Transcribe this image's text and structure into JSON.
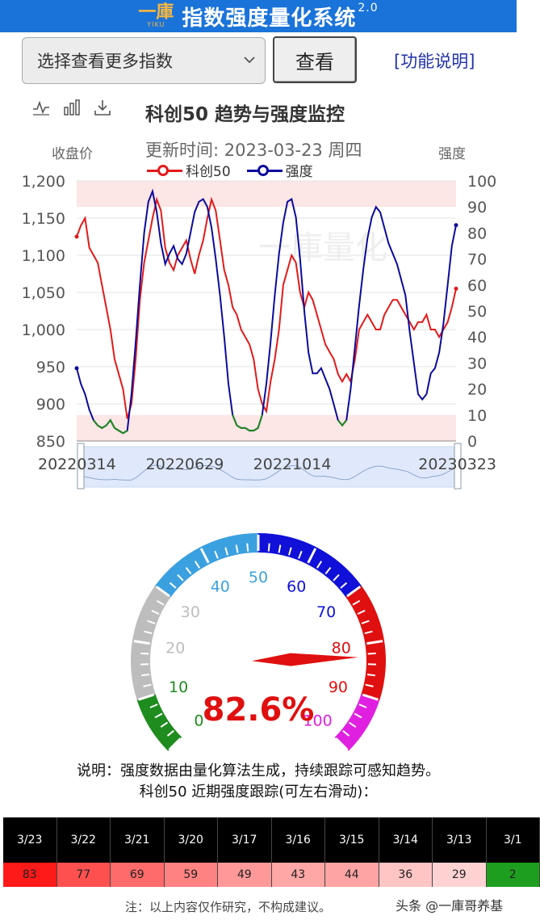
{
  "header": {
    "logo_mark": "一庫",
    "logo_sub": "YIKU",
    "title": "指数强度量化系统",
    "version": "2.0"
  },
  "controls": {
    "select_value": "选择查看更多指数",
    "view_button": "查看",
    "help_link": "[功能说明]"
  },
  "toolbox": [
    "line-chart-icon",
    "bar-chart-icon",
    "download-icon"
  ],
  "chart": {
    "title": "科创50 趋势与强度监控",
    "update_time": "更新时间: 2023-03-23 周四",
    "ylabel_left": "收盘价",
    "ylabel_right": "强度",
    "watermark": "一庫量化",
    "legend": [
      {
        "name": "科创50",
        "color": "#e31a1a"
      },
      {
        "name": "强度",
        "color": "#0b0b9c"
      }
    ]
  },
  "chart_data": {
    "type": "line",
    "title": "科创50 趋势与强度监控",
    "xlabel": "",
    "ylabel_left": "收盘价",
    "ylabel_right": "强度",
    "ylim_left": [
      850,
      1200
    ],
    "yticks_left": [
      "850",
      "900",
      "950",
      "1,000",
      "1,050",
      "1,100",
      "1,150",
      "1,200"
    ],
    "ylim_right": [
      0,
      100
    ],
    "yticks_right": [
      "0",
      "10",
      "20",
      "30",
      "40",
      "50",
      "60",
      "70",
      "80",
      "90",
      "100"
    ],
    "x_tick_labels": [
      "20220314",
      "20220629",
      "20221014",
      "20230323"
    ],
    "bands_right_axis": [
      [
        90,
        100
      ],
      [
        0,
        10
      ]
    ],
    "series": [
      {
        "name": "科创50",
        "axis": "left",
        "color": "#e31a1a",
        "values": [
          1125,
          1140,
          1150,
          1110,
          1100,
          1090,
          1060,
          1030,
          1000,
          960,
          940,
          920,
          880,
          900,
          960,
          1040,
          1090,
          1120,
          1150,
          1175,
          1160,
          1110,
          1090,
          1080,
          1100,
          1110,
          1120,
          1095,
          1075,
          1100,
          1120,
          1150,
          1175,
          1160,
          1120,
          1080,
          1060,
          1030,
          1020,
          1000,
          990,
          980,
          960,
          920,
          900,
          890,
          930,
          960,
          1000,
          1060,
          1080,
          1100,
          1090,
          1050,
          1030,
          1050,
          1040,
          1020,
          1000,
          980,
          970,
          960,
          940,
          930,
          940,
          930,
          960,
          1000,
          1010,
          1020,
          1010,
          1000,
          1000,
          1020,
          1030,
          1040,
          1040,
          1030,
          1020,
          1010,
          1000,
          1010,
          1010,
          1020,
          1000,
          1000,
          990,
          1000,
          1010,
          1030,
          1055
        ]
      },
      {
        "name": "强度",
        "axis": "right",
        "color": "#0b0b9c",
        "values": [
          28,
          22,
          18,
          12,
          8,
          6,
          5,
          6,
          8,
          5,
          4,
          3,
          4,
          18,
          38,
          60,
          80,
          92,
          96,
          88,
          76,
          68,
          72,
          75,
          70,
          68,
          72,
          80,
          88,
          92,
          93,
          90,
          82,
          70,
          56,
          40,
          22,
          10,
          6,
          5,
          5,
          4,
          4,
          5,
          10,
          22,
          38,
          56,
          72,
          84,
          92,
          93,
          86,
          70,
          50,
          34,
          26,
          26,
          28,
          24,
          20,
          14,
          8,
          6,
          8,
          20,
          36,
          52,
          66,
          78,
          86,
          90,
          88,
          82,
          76,
          72,
          68,
          62,
          56,
          42,
          30,
          18,
          16,
          18,
          26,
          28,
          34,
          45,
          60,
          75,
          83
        ]
      }
    ]
  },
  "zoom": {
    "start_label": "20220314",
    "end_label": "20230323"
  },
  "gauge": {
    "value": 82.6,
    "value_label": "82.6%",
    "min": 0,
    "max": 100,
    "tick_labels": [
      "0",
      "10",
      "20",
      "30",
      "40",
      "50",
      "60",
      "70",
      "80",
      "90",
      "100"
    ],
    "segments": [
      {
        "from": 0,
        "to": 10,
        "color": "#1e8c1e"
      },
      {
        "from": 10,
        "to": 30,
        "color": "#bdbdbd"
      },
      {
        "from": 30,
        "to": 50,
        "color": "#3ba0e0"
      },
      {
        "from": 50,
        "to": 70,
        "color": "#1010d8"
      },
      {
        "from": 70,
        "to": 90,
        "color": "#e01010"
      },
      {
        "from": 90,
        "to": 100,
        "color": "#e020e0"
      }
    ]
  },
  "notes": {
    "line1": "说明：强度数据由量化算法生成，持续跟踪可感知趋势。",
    "line2": "科创50 近期强度跟踪(可左右滑动)："
  },
  "history": [
    {
      "date": "3/23",
      "value": "83",
      "color": "#ff1a1a"
    },
    {
      "date": "3/22",
      "value": "77",
      "color": "#ff5050"
    },
    {
      "date": "3/21",
      "value": "69",
      "color": "#ff6a6a"
    },
    {
      "date": "3/20",
      "value": "59",
      "color": "#ff8282"
    },
    {
      "date": "3/17",
      "value": "49",
      "color": "#ff9999"
    },
    {
      "date": "3/16",
      "value": "43",
      "color": "#ffa6a6"
    },
    {
      "date": "3/15",
      "value": "44",
      "color": "#ffa4a4"
    },
    {
      "date": "3/14",
      "value": "36",
      "color": "#ffc4c4"
    },
    {
      "date": "3/13",
      "value": "29",
      "color": "#ffd2d2"
    },
    {
      "date": "3/1",
      "value": "2",
      "color": "#1e9e1e"
    }
  ],
  "footer": {
    "disclaimer": "注：以上内容仅作研究，不构成建议。",
    "credit": "头条 @一庫哥养基"
  }
}
